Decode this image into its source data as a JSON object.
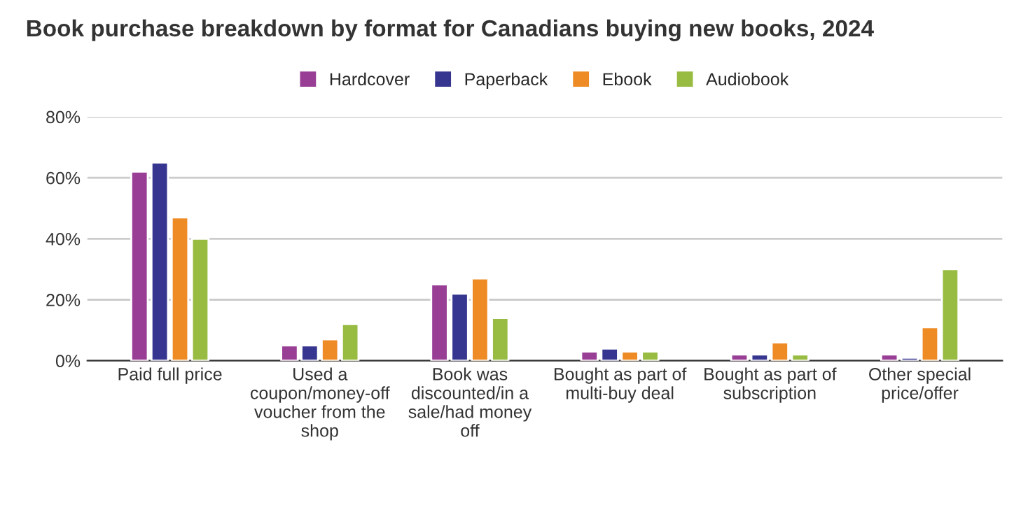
{
  "chart_data": {
    "type": "bar",
    "title": "Book purchase breakdown by format for Canadians buying new books, 2024",
    "categories": [
      "Paid full price",
      "Used a\ncoupon/money-off\nvoucher from the\nshop",
      "Book was\ndiscounted/in a\nsale/had money\noff",
      "Bought as part of\nmulti-buy deal",
      "Bought as part of\nsubscription",
      "Other special\nprice/offer"
    ],
    "series": [
      {
        "name": "Hardcover",
        "color": "#993e95",
        "values": [
          62,
          5,
          25,
          3,
          2,
          2
        ]
      },
      {
        "name": "Paperback",
        "color": "#36358f",
        "values": [
          65,
          5,
          22,
          4,
          2,
          1
        ]
      },
      {
        "name": "Ebook",
        "color": "#ee8b25",
        "values": [
          47,
          7,
          27,
          3,
          6,
          11
        ]
      },
      {
        "name": "Audiobook",
        "color": "#98bb41",
        "values": [
          40,
          12,
          14,
          3,
          2,
          30
        ]
      }
    ],
    "ylim": [
      0,
      80
    ],
    "yticks": [
      {
        "value": 0,
        "label": "0%"
      },
      {
        "value": 20,
        "label": "20%"
      },
      {
        "value": 40,
        "label": "40%"
      },
      {
        "value": 60,
        "label": "60%"
      },
      {
        "value": 80,
        "label": "80%"
      }
    ],
    "grid": "y",
    "legend": "top"
  }
}
